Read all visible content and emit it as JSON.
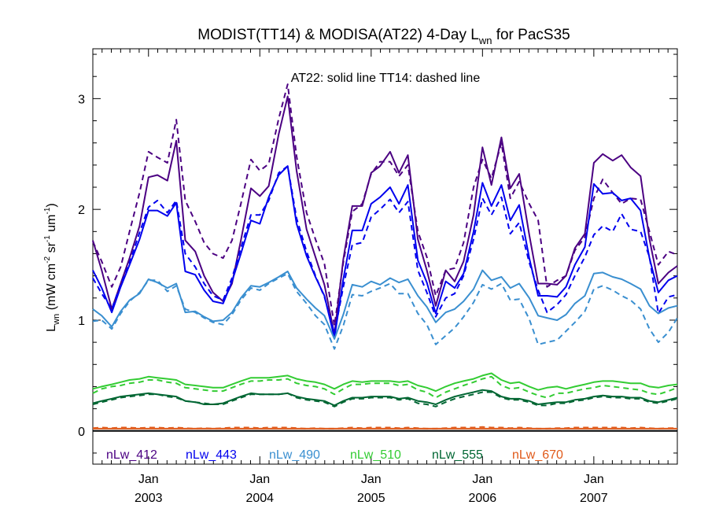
{
  "chart_data": {
    "type": "line",
    "title_main": "MODIST(TT14) & MODISA(AT22) 4-Day L",
    "title_sub": "wn",
    "title_tail": " for PacS35",
    "annotation": "AT22: solid line   TT14: dashed line",
    "ylabel_main": "L",
    "ylabel_sub": "wn",
    "ylabel_units": " (mW cm",
    "ylabel_exp1": "-2",
    "ylabel_sr": " sr",
    "ylabel_exp2": "-1",
    "ylabel_um": " um",
    "ylabel_exp3": "-1",
    "ylabel_close": ")",
    "ylim": [
      -0.3,
      3.45
    ],
    "xlim": [
      2002.5,
      2007.75
    ],
    "yticks": [
      0,
      1,
      2,
      3
    ],
    "ytick_labels": [
      "0",
      "1",
      "2",
      "3"
    ],
    "xticks": [
      2003.0,
      2004.0,
      2005.0,
      2006.0,
      2007.0
    ],
    "xtick_labels_top": [
      "Jan",
      "Jan",
      "Jan",
      "Jan",
      "Jan"
    ],
    "xtick_labels_bottom": [
      "2003",
      "2004",
      "2005",
      "2006",
      "2007"
    ],
    "x": [
      2002.5,
      2002.58,
      2002.67,
      2002.75,
      2002.83,
      2002.92,
      2003.0,
      2003.08,
      2003.17,
      2003.25,
      2003.33,
      2003.42,
      2003.5,
      2003.58,
      2003.67,
      2003.75,
      2003.83,
      2003.92,
      2004.0,
      2004.08,
      2004.17,
      2004.25,
      2004.33,
      2004.42,
      2004.5,
      2004.58,
      2004.67,
      2004.75,
      2004.83,
      2004.92,
      2005.0,
      2005.08,
      2005.17,
      2005.25,
      2005.33,
      2005.42,
      2005.5,
      2005.58,
      2005.67,
      2005.75,
      2005.83,
      2005.92,
      2006.0,
      2006.08,
      2006.17,
      2006.25,
      2006.33,
      2006.42,
      2006.5,
      2006.58,
      2006.67,
      2006.75,
      2006.83,
      2006.92,
      2007.0,
      2007.08,
      2007.17,
      2007.25,
      2007.33,
      2007.42,
      2007.5,
      2007.58,
      2007.67,
      2007.75
    ],
    "series": [
      {
        "name": "nLw_412",
        "color": "#4b0082",
        "style": "solid",
        "values": [
          1.72,
          1.45,
          1.1,
          1.33,
          1.56,
          1.85,
          2.29,
          2.31,
          2.26,
          2.62,
          1.72,
          1.62,
          1.4,
          1.25,
          1.17,
          1.33,
          1.72,
          2.19,
          2.12,
          2.21,
          2.68,
          3.02,
          2.35,
          1.82,
          1.57,
          1.32,
          0.87,
          1.55,
          2.03,
          2.03,
          2.33,
          2.39,
          2.52,
          2.33,
          2.49,
          1.73,
          1.45,
          1.13,
          1.45,
          1.35,
          1.53,
          1.95,
          2.56,
          2.22,
          2.65,
          2.19,
          2.32,
          1.77,
          1.33,
          1.33,
          1.32,
          1.4,
          1.65,
          1.78,
          2.42,
          2.5,
          2.44,
          2.49,
          2.38,
          2.3,
          1.73,
          1.33,
          1.43,
          1.49
        ]
      },
      {
        "name": "nLw_412 TT14",
        "color": "#4b0082",
        "style": "dashed",
        "values": [
          1.71,
          1.53,
          1.3,
          1.48,
          1.8,
          2.15,
          2.52,
          2.47,
          2.42,
          2.81,
          2.08,
          1.89,
          1.7,
          1.6,
          1.56,
          1.72,
          2.05,
          2.45,
          2.35,
          2.41,
          2.82,
          3.13,
          2.48,
          1.97,
          1.73,
          1.51,
          0.95,
          1.52,
          1.98,
          2.05,
          2.32,
          2.43,
          2.43,
          2.3,
          2.4,
          1.8,
          1.57,
          1.22,
          1.45,
          1.47,
          1.7,
          2.2,
          2.45,
          2.28,
          2.6,
          2.1,
          2.25,
          2.05,
          1.9,
          1.3,
          1.36,
          1.4,
          1.63,
          1.75,
          2.1,
          2.27,
          2.15,
          2.05,
          2.1,
          2.09,
          1.8,
          1.5,
          1.62,
          1.59
        ]
      },
      {
        "name": "nLw_443",
        "color": "#0000ee",
        "style": "solid",
        "values": [
          1.45,
          1.29,
          1.07,
          1.3,
          1.5,
          1.73,
          1.99,
          1.99,
          1.94,
          2.06,
          1.44,
          1.41,
          1.27,
          1.17,
          1.15,
          1.35,
          1.6,
          1.9,
          1.87,
          2.11,
          2.31,
          2.39,
          1.87,
          1.58,
          1.39,
          1.22,
          0.84,
          1.37,
          1.81,
          1.81,
          2.05,
          2.11,
          2.2,
          2.05,
          2.22,
          1.54,
          1.34,
          1.06,
          1.35,
          1.29,
          1.42,
          1.8,
          2.24,
          2.03,
          2.22,
          1.9,
          2.04,
          1.56,
          1.22,
          1.22,
          1.21,
          1.3,
          1.5,
          1.66,
          2.23,
          2.14,
          2.15,
          2.08,
          2.1,
          1.99,
          1.56,
          1.25,
          1.36,
          1.4
        ]
      },
      {
        "name": "nLw_443 TT14",
        "color": "#0000ee",
        "style": "dashed",
        "values": [
          1.38,
          1.24,
          1.1,
          1.32,
          1.52,
          1.79,
          2.02,
          2.08,
          1.97,
          2.08,
          1.6,
          1.48,
          1.33,
          1.22,
          1.18,
          1.38,
          1.65,
          1.95,
          1.95,
          2.08,
          2.33,
          2.39,
          1.92,
          1.62,
          1.4,
          1.21,
          0.88,
          1.3,
          1.68,
          1.7,
          1.93,
          2.0,
          2.09,
          1.97,
          2.07,
          1.45,
          1.25,
          1.03,
          1.2,
          1.24,
          1.4,
          1.73,
          2.1,
          1.95,
          2.11,
          1.78,
          1.88,
          1.52,
          1.27,
          1.07,
          1.14,
          1.23,
          1.4,
          1.57,
          1.77,
          1.85,
          1.8,
          1.96,
          1.82,
          1.8,
          1.57,
          1.06,
          1.21,
          1.23
        ]
      },
      {
        "name": "nLw_490",
        "color": "#3a8fd0",
        "style": "solid",
        "values": [
          1.1,
          1.04,
          0.94,
          1.08,
          1.18,
          1.24,
          1.37,
          1.34,
          1.29,
          1.33,
          1.07,
          1.08,
          1.03,
          0.99,
          1.0,
          1.07,
          1.2,
          1.31,
          1.3,
          1.34,
          1.39,
          1.44,
          1.29,
          1.19,
          1.11,
          1.04,
          0.83,
          1.05,
          1.32,
          1.3,
          1.35,
          1.32,
          1.38,
          1.34,
          1.37,
          1.22,
          1.12,
          0.98,
          1.07,
          1.1,
          1.17,
          1.28,
          1.45,
          1.36,
          1.39,
          1.29,
          1.33,
          1.2,
          1.04,
          1.02,
          1.0,
          1.05,
          1.15,
          1.22,
          1.42,
          1.43,
          1.39,
          1.37,
          1.33,
          1.28,
          1.13,
          1.06,
          1.11,
          1.13
        ]
      },
      {
        "name": "nLw_490 TT14",
        "color": "#3a8fd0",
        "style": "dashed",
        "values": [
          0.99,
          1.0,
          0.92,
          1.06,
          1.17,
          1.25,
          1.36,
          1.36,
          1.26,
          1.31,
          1.1,
          1.07,
          1.02,
          0.98,
          0.96,
          1.05,
          1.18,
          1.29,
          1.27,
          1.33,
          1.38,
          1.42,
          1.26,
          1.15,
          1.04,
          0.96,
          0.74,
          0.95,
          1.23,
          1.22,
          1.26,
          1.29,
          1.33,
          1.24,
          1.24,
          1.06,
          0.96,
          0.78,
          0.86,
          0.93,
          1.03,
          1.16,
          1.32,
          1.28,
          1.33,
          1.18,
          1.19,
          1.01,
          0.78,
          0.8,
          0.82,
          0.9,
          0.98,
          1.08,
          1.28,
          1.31,
          1.27,
          1.22,
          1.18,
          1.1,
          0.92,
          0.8,
          0.89,
          1.02
        ]
      },
      {
        "name": "nLw_510",
        "color": "#33cc33",
        "style": "solid",
        "values": [
          0.38,
          0.4,
          0.42,
          0.44,
          0.46,
          0.47,
          0.49,
          0.48,
          0.47,
          0.46,
          0.42,
          0.41,
          0.4,
          0.39,
          0.39,
          0.42,
          0.45,
          0.48,
          0.48,
          0.48,
          0.49,
          0.5,
          0.47,
          0.45,
          0.44,
          0.42,
          0.38,
          0.42,
          0.45,
          0.44,
          0.45,
          0.45,
          0.45,
          0.44,
          0.45,
          0.41,
          0.39,
          0.36,
          0.4,
          0.43,
          0.45,
          0.47,
          0.5,
          0.52,
          0.46,
          0.43,
          0.44,
          0.4,
          0.37,
          0.39,
          0.4,
          0.38,
          0.4,
          0.42,
          0.44,
          0.45,
          0.45,
          0.44,
          0.43,
          0.43,
          0.4,
          0.39,
          0.41,
          0.42
        ]
      },
      {
        "name": "nLw_510 TT14",
        "color": "#33cc33",
        "style": "dashed",
        "values": [
          0.34,
          0.38,
          0.4,
          0.41,
          0.43,
          0.44,
          0.46,
          0.46,
          0.44,
          0.43,
          0.39,
          0.38,
          0.37,
          0.36,
          0.36,
          0.39,
          0.42,
          0.45,
          0.45,
          0.46,
          0.46,
          0.47,
          0.43,
          0.41,
          0.4,
          0.38,
          0.33,
          0.38,
          0.42,
          0.42,
          0.43,
          0.43,
          0.43,
          0.41,
          0.42,
          0.37,
          0.35,
          0.3,
          0.35,
          0.38,
          0.41,
          0.44,
          0.47,
          0.49,
          0.41,
          0.38,
          0.39,
          0.35,
          0.32,
          0.3,
          0.34,
          0.34,
          0.36,
          0.38,
          0.39,
          0.41,
          0.4,
          0.39,
          0.38,
          0.37,
          0.34,
          0.33,
          0.36,
          0.39
        ]
      },
      {
        "name": "nLw_555",
        "color": "#006633",
        "style": "solid",
        "values": [
          0.25,
          0.27,
          0.29,
          0.31,
          0.32,
          0.33,
          0.34,
          0.33,
          0.32,
          0.31,
          0.27,
          0.26,
          0.24,
          0.24,
          0.25,
          0.28,
          0.31,
          0.34,
          0.33,
          0.33,
          0.33,
          0.34,
          0.31,
          0.29,
          0.28,
          0.27,
          0.23,
          0.27,
          0.3,
          0.3,
          0.31,
          0.31,
          0.31,
          0.29,
          0.3,
          0.27,
          0.26,
          0.24,
          0.28,
          0.31,
          0.33,
          0.35,
          0.37,
          0.36,
          0.31,
          0.29,
          0.29,
          0.27,
          0.24,
          0.25,
          0.26,
          0.26,
          0.28,
          0.29,
          0.31,
          0.32,
          0.31,
          0.31,
          0.3,
          0.3,
          0.27,
          0.26,
          0.28,
          0.3
        ]
      },
      {
        "name": "nLw_555 TT14",
        "color": "#006633",
        "style": "dashed",
        "values": [
          0.24,
          0.26,
          0.28,
          0.3,
          0.31,
          0.32,
          0.33,
          0.33,
          0.31,
          0.3,
          0.27,
          0.26,
          0.25,
          0.24,
          0.24,
          0.27,
          0.3,
          0.33,
          0.33,
          0.33,
          0.33,
          0.34,
          0.3,
          0.28,
          0.27,
          0.26,
          0.22,
          0.26,
          0.29,
          0.29,
          0.3,
          0.3,
          0.3,
          0.28,
          0.29,
          0.25,
          0.24,
          0.22,
          0.26,
          0.29,
          0.31,
          0.33,
          0.35,
          0.35,
          0.3,
          0.28,
          0.28,
          0.26,
          0.23,
          0.23,
          0.25,
          0.25,
          0.27,
          0.28,
          0.3,
          0.31,
          0.3,
          0.3,
          0.29,
          0.29,
          0.26,
          0.25,
          0.27,
          0.29
        ]
      },
      {
        "name": "nLw_670",
        "color": "#e05a1a",
        "style": "solid",
        "values": [
          0.02,
          0.02,
          0.02,
          0.02,
          0.02,
          0.02,
          0.02,
          0.02,
          0.02,
          0.02,
          0.02,
          0.02,
          0.02,
          0.02,
          0.02,
          0.02,
          0.02,
          0.02,
          0.02,
          0.02,
          0.02,
          0.02,
          0.02,
          0.02,
          0.02,
          0.02,
          0.02,
          0.02,
          0.02,
          0.02,
          0.02,
          0.02,
          0.02,
          0.02,
          0.02,
          0.02,
          0.02,
          0.02,
          0.02,
          0.02,
          0.02,
          0.02,
          0.02,
          0.02,
          0.02,
          0.02,
          0.02,
          0.02,
          0.02,
          0.02,
          0.02,
          0.02,
          0.02,
          0.02,
          0.02,
          0.02,
          0.02,
          0.02,
          0.02,
          0.02,
          0.02,
          0.02,
          0.02,
          0.02
        ]
      },
      {
        "name": "nLw_670 TT14",
        "color": "#e05a1a",
        "style": "dashed",
        "values": [
          0.025,
          0.03,
          0.025,
          0.03,
          0.03,
          0.025,
          0.03,
          0.03,
          0.025,
          0.03,
          0.025,
          0.02,
          0.025,
          0.02,
          0.025,
          0.03,
          0.03,
          0.03,
          0.025,
          0.03,
          0.03,
          0.03,
          0.025,
          0.02,
          0.025,
          0.02,
          0.02,
          0.025,
          0.03,
          0.025,
          0.03,
          0.03,
          0.03,
          0.025,
          0.03,
          0.025,
          0.02,
          0.02,
          0.025,
          0.03,
          0.03,
          0.03,
          0.035,
          0.03,
          0.03,
          0.025,
          0.03,
          0.025,
          0.02,
          0.02,
          0.025,
          0.025,
          0.03,
          0.03,
          0.03,
          0.03,
          0.03,
          0.03,
          0.025,
          0.03,
          0.025,
          0.02,
          0.025,
          0.025
        ]
      }
    ],
    "legend": [
      {
        "label": "nLw_412",
        "color": "#4b0082"
      },
      {
        "label": "nLw_443",
        "color": "#0000ee"
      },
      {
        "label": "nLw_490",
        "color": "#3a8fd0"
      },
      {
        "label": "nLw_510",
        "color": "#33cc33"
      },
      {
        "label": "nLw_555",
        "color": "#006633"
      },
      {
        "label": "nLw_670",
        "color": "#e05a1a"
      }
    ]
  }
}
